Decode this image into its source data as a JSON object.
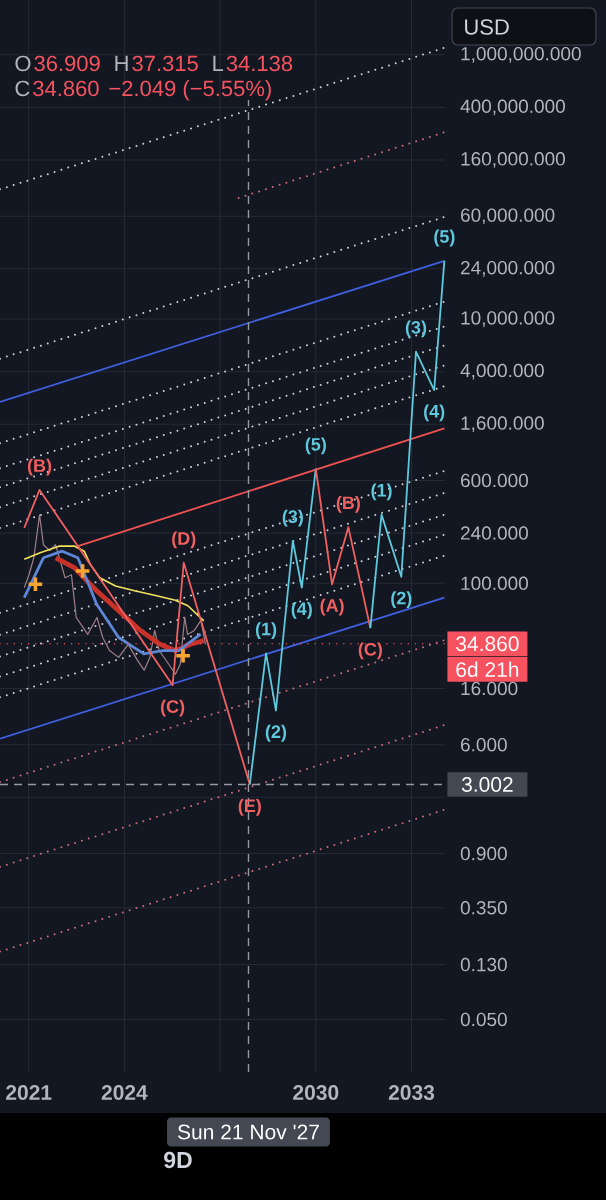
{
  "chart_data": {
    "type": "line",
    "xlim": [
      2020.1,
      2034.05
    ],
    "ylim": [
      0.02,
      2600000
    ],
    "log": "y",
    "grid": true,
    "xticks": [
      2021,
      2024,
      {
        "value": 2027,
        "label": null
      },
      2030,
      2033
    ],
    "yticks": [
      {
        "value": 1000000,
        "label": "1,000,000.000"
      },
      {
        "value": 400000,
        "label": "400,000.000"
      },
      {
        "value": 160000,
        "label": "160,000.000"
      },
      {
        "value": 60000,
        "label": "60,000.000"
      },
      {
        "value": 24000,
        "label": "24,000.000"
      },
      {
        "value": 10000,
        "label": "10,000.000"
      },
      {
        "value": 4000,
        "label": "4,000.000"
      },
      {
        "value": 1600,
        "label": "1,600.000"
      },
      {
        "value": 600,
        "label": "600.000"
      },
      {
        "value": 240,
        "label": "240.000"
      },
      {
        "value": 100,
        "label": "100.000"
      },
      {
        "value": 40,
        "label": null
      },
      {
        "value": 16,
        "label": "16.000"
      },
      {
        "value": 6,
        "label": "6.000"
      },
      {
        "value": 2.4,
        "label": null
      },
      {
        "value": 0.9,
        "label": "0.900"
      },
      {
        "value": 0.35,
        "label": "0.350"
      },
      {
        "value": 0.13,
        "label": "0.130"
      },
      {
        "value": 0.05,
        "label": "0.050"
      }
    ],
    "series": [
      {
        "color": "#d0d3da",
        "line_style": "dotted",
        "x": [
          2020.1,
          2034.03
        ],
        "values": [
          95900,
          1130000
        ]
      },
      {
        "color": "#c9707c",
        "line_style": "dotted",
        "x": [
          2027.58,
          2034.03
        ],
        "values": [
          82600,
          259000
        ]
      },
      {
        "color": "#d0d3da",
        "line_style": "dotted",
        "x": [
          2020.1,
          2034.03
        ],
        "values": [
          5010,
          59300
        ]
      },
      {
        "color": "#d0d3da",
        "line_style": "dotted",
        "x": [
          2020.1,
          2034.03
        ],
        "values": [
          1150,
          13550
        ]
      },
      {
        "color": "#d0d3da",
        "line_style": "dotted",
        "x": [
          2020.1,
          2034.03
        ],
        "values": [
          743,
          8790
        ]
      },
      {
        "color": "#d0d3da",
        "line_style": "dotted",
        "x": [
          2020.1,
          2034.03
        ],
        "values": [
          533,
          6310
        ]
      },
      {
        "color": "#d0d3da",
        "line_style": "dotted",
        "x": [
          2020.1,
          2034.03
        ],
        "values": [
          377,
          4460
        ]
      },
      {
        "color": "#d0d3da",
        "line_style": "dotted",
        "x": [
          2020.1,
          2034.03
        ],
        "values": [
          262,
          3100
        ]
      },
      {
        "color": "#d0d3da",
        "line_style": "dotted",
        "x": [
          2020.1,
          2034.03
        ],
        "values": [
          59.8,
          708
        ]
      },
      {
        "color": "#d0d3da",
        "line_style": "dotted",
        "x": [
          2020.1,
          2034.03
        ],
        "values": [
          40.8,
          483
        ]
      },
      {
        "color": "#d0d3da",
        "line_style": "dotted",
        "x": [
          2020.1,
          2034.03
        ],
        "values": [
          27.9,
          330
        ]
      },
      {
        "color": "#d0d3da",
        "line_style": "dotted",
        "x": [
          2020.1,
          2034.03
        ],
        "values": [
          19.7,
          233
        ]
      },
      {
        "color": "#d0d3da",
        "line_style": "dotted",
        "x": [
          2020.1,
          2034.03
        ],
        "values": [
          13.7,
          162
        ]
      },
      {
        "color": "#c9707c",
        "line_style": "dotted",
        "x": [
          2020.1,
          2034.03
        ],
        "values": [
          3.13,
          37.0
        ]
      },
      {
        "color": "#c9707c",
        "line_style": "dotted",
        "x": [
          2020.1,
          2034.03
        ],
        "values": [
          0.714,
          8.45
        ]
      },
      {
        "color": "#c9707c",
        "line_style": "dotted",
        "x": [
          2020.1,
          2034.03
        ],
        "values": [
          0.163,
          1.93
        ]
      },
      {
        "color": "#3f5fe0",
        "x": [
          2020.1,
          2034.03
        ],
        "values": [
          2360,
          27600
        ]
      },
      {
        "color": "#3f5fe0",
        "x": [
          2020.1,
          2034.03
        ],
        "values": [
          6.67,
          78.0
        ]
      },
      {
        "color": "#ef5350",
        "x": [
          2022.54,
          2034.03
        ],
        "values": [
          191,
          1490
        ]
      },
      {
        "color": "#a07f88",
        "x": [
          2020.86,
          2021.01,
          2021.16,
          2021.34,
          2021.46,
          2021.66,
          2021.84,
          2021.96,
          2022.14,
          2022.34,
          2022.49,
          2022.64,
          2022.85,
          2023.14,
          2023.32,
          2023.53,
          2023.82,
          2024.12,
          2024.41,
          2024.62,
          2024.8,
          2024.95,
          2025.09,
          2025.39,
          2025.6,
          2025.75,
          2025.89,
          2025.98,
          2026.19,
          2026.4,
          2026.54
        ],
        "values": [
          92.7,
          116,
          156,
          330,
          196,
          177,
          196,
          156,
          110,
          116,
          55.1,
          48.8,
          41,
          55.1,
          38.9,
          31,
          27.5,
          34.5,
          26.1,
          22,
          27.5,
          44,
          31,
          24.4,
          20.5,
          24.4,
          55.1,
          41,
          44,
          52.4,
          34.5
        ]
      },
      {
        "color": "#f2e35c",
        "x": [
          2020.86,
          2021.36,
          2021.95,
          2022.44,
          2022.74,
          2022.93,
          2023.23,
          2023.72,
          2024.32,
          2025.01,
          2025.6,
          2025.99,
          2026.49
        ],
        "values": [
          152,
          170,
          191,
          191,
          175,
          139,
          110,
          95.5,
          87.7,
          80.4,
          74.5,
          67.6,
          52
        ]
      },
      {
        "color": "#c83228",
        "x": [
          2021.85,
          2022.44,
          2023.13,
          2023.82,
          2024.51,
          2025.1,
          2025.6,
          2026.09,
          2026.49
        ],
        "values": [
          156,
          131,
          87.7,
          61.9,
          43.8,
          34.7,
          30.9,
          34.7,
          36.8
        ]
      },
      {
        "color": "#5d86d6",
        "x": [
          2020.86,
          2021.46,
          2022.05,
          2022.54,
          2023.13,
          2023.82,
          2024.61,
          2025.2,
          2025.7,
          2026.39
        ],
        "values": [
          78,
          156,
          175,
          156,
          69.5,
          38.9,
          29.2,
          30.9,
          30.9,
          41.2
        ]
      },
      {
        "type": "scatter",
        "marker": "cross",
        "color": "#f7a531",
        "x": [
          2021.21,
          2022.69,
          2025.84
        ],
        "values": [
          98.3,
          124,
          28.3
        ]
      },
      {
        "color": "#f06060",
        "x": [
          2020.86,
          2021.34,
          2025.51,
          2025.86,
          2027.93
        ],
        "values": [
          263,
          509,
          16.9,
          143,
          3.0
        ]
      },
      {
        "color": "#5ec8dc",
        "x": [
          2027.93,
          2028.44,
          2028.75,
          2029.28,
          2029.56,
          2030.0
        ],
        "values": [
          3.0,
          29.5,
          10.9,
          209,
          92.9,
          737
        ]
      },
      {
        "color": "#f06060",
        "x": [
          2030.0,
          2030.51,
          2031.02,
          2031.71
        ],
        "values": [
          737,
          98.3,
          266,
          45.8
        ]
      },
      {
        "color": "#5ec8dc",
        "x": [
          2031.71,
          2032.06,
          2032.68,
          2033.14,
          2033.71,
          2034.03
        ],
        "values": [
          45.8,
          331,
          112,
          5660,
          2904,
          27600
        ]
      }
    ],
    "ref_lines": [
      {
        "axis": "y",
        "value": 34.86,
        "label": "34.860",
        "color": "#f7525f",
        "line_style": "dotted"
      },
      {
        "axis": "y",
        "value": 3.002,
        "label": "3.002",
        "color": "#9598a1",
        "line_style": "dashed"
      },
      {
        "axis": "x",
        "value": 2027.89,
        "label": "Sun 21 Nov '27",
        "color": "#9598a1",
        "line_style": "dashed"
      }
    ],
    "annotations": [
      "O",
      "36.909",
      "H",
      "37.315",
      "L",
      "34.138",
      "C",
      "34.860",
      "−2.049 (−5.55%)",
      "6d 21h",
      "USD",
      "9D",
      {
        "text": "(B)",
        "x": 2021.34,
        "y": 509
      },
      {
        "text": "(C)",
        "x": 2025.51,
        "y": 16.9
      },
      {
        "text": "(D)",
        "x": 2025.86,
        "y": 143
      },
      {
        "text": "(E)",
        "x": 2027.93,
        "y": 3.0
      },
      {
        "text": "(1)",
        "x": 2028.44,
        "y": 29.5
      },
      {
        "text": "(2)",
        "x": 2028.75,
        "y": 10.9
      },
      {
        "text": "(3)",
        "x": 2029.28,
        "y": 209
      },
      {
        "text": "(4)",
        "x": 2029.56,
        "y": 92.9
      },
      {
        "text": "(5)",
        "x": 2030.0,
        "y": 737
      },
      {
        "text": "(A)",
        "x": 2030.51,
        "y": 98.3
      },
      {
        "text": "(B)",
        "x": 2031.02,
        "y": 266
      },
      {
        "text": "(C)",
        "x": 2031.71,
        "y": 45.8
      },
      {
        "text": "(1)",
        "x": 2032.06,
        "y": 331
      },
      {
        "text": "(2)",
        "x": 2032.68,
        "y": 112
      },
      {
        "text": "(3)",
        "x": 2033.14,
        "y": 5660
      },
      {
        "text": "(4)",
        "x": 2033.71,
        "y": 2904
      },
      {
        "text": "(5)",
        "x": 2034.03,
        "y": 27600
      }
    ]
  }
}
